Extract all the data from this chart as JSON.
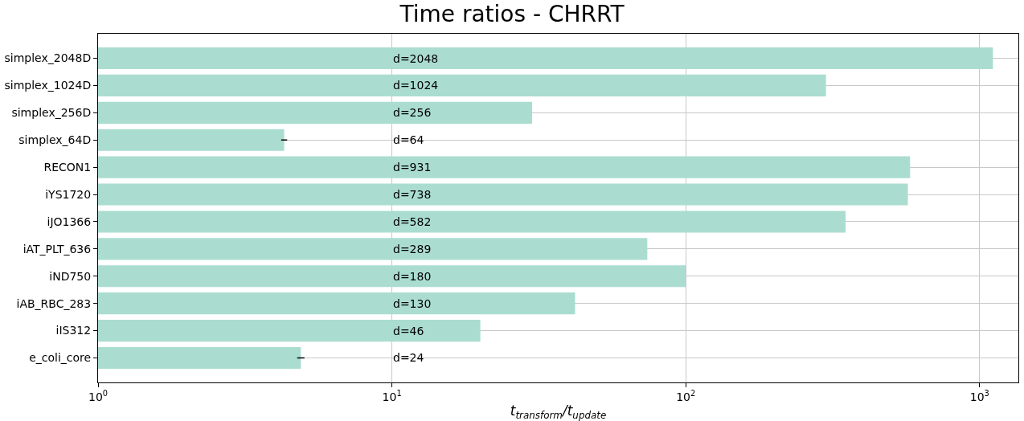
{
  "chart_data": {
    "type": "bar",
    "orientation": "horizontal",
    "title": "Time ratios - CHRRT",
    "xlabel": "t$_{transform}$/t$_{update}$",
    "categories": [
      "simplex_2048D",
      "simplex_1024D",
      "simplex_256D",
      "simplex_64D",
      "RECON1",
      "iYS1720",
      "iJO1366",
      "iAT_PLT_636",
      "iND750",
      "iAB_RBC_283",
      "iIS312",
      "e_coli_core"
    ],
    "values": [
      1110,
      300,
      30,
      4.3,
      580,
      570,
      350,
      74,
      100,
      42,
      20,
      4.9
    ],
    "errors": [
      null,
      null,
      null,
      0.1,
      null,
      null,
      null,
      null,
      null,
      null,
      null,
      0.14
    ],
    "color": "#aaddd0",
    "log": "x",
    "xlim": [
      1,
      1355
    ],
    "xticks": [
      {
        "value": 1,
        "label": "10$^{0}$"
      },
      {
        "value": 10,
        "label": "10$^{1}$"
      },
      {
        "value": 100,
        "label": "10$^{2}$"
      },
      {
        "value": 1000,
        "label": "10$^{3}$"
      }
    ],
    "grid": true,
    "annotations": [
      "d=2048",
      "d=1024",
      "d=256",
      "d=64",
      "d=931",
      "d=738",
      "d=582",
      "d=289",
      "d=180",
      "d=130",
      "d=46",
      "d=24"
    ]
  }
}
